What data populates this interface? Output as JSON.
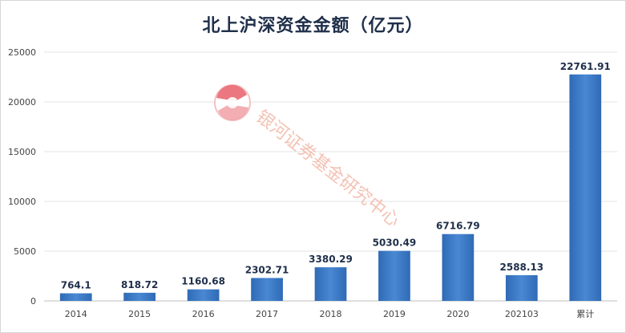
{
  "chart_data": {
    "type": "bar",
    "title": "北上沪深资金金额（亿元）",
    "categories": [
      "2014",
      "2015",
      "2016",
      "2017",
      "2018",
      "2019",
      "2020",
      "202103",
      "累计"
    ],
    "values": [
      764.1,
      818.72,
      1160.68,
      2302.71,
      3380.29,
      5030.49,
      6716.79,
      2588.13,
      22761.91
    ],
    "value_labels": [
      "764.1",
      "818.72",
      "1160.68",
      "2302.71",
      "3380.29",
      "5030.49",
      "6716.79",
      "2588.13",
      "22761.91"
    ],
    "ylim": [
      0,
      25000
    ],
    "yticks": [
      0,
      5000,
      10000,
      15000,
      20000,
      25000
    ],
    "grid": true,
    "bar_color": "#3d7cc9"
  },
  "watermark": {
    "text": "银河证券基金研究中心",
    "logo_colors": [
      "#e8606a",
      "#5a8fd0"
    ]
  }
}
